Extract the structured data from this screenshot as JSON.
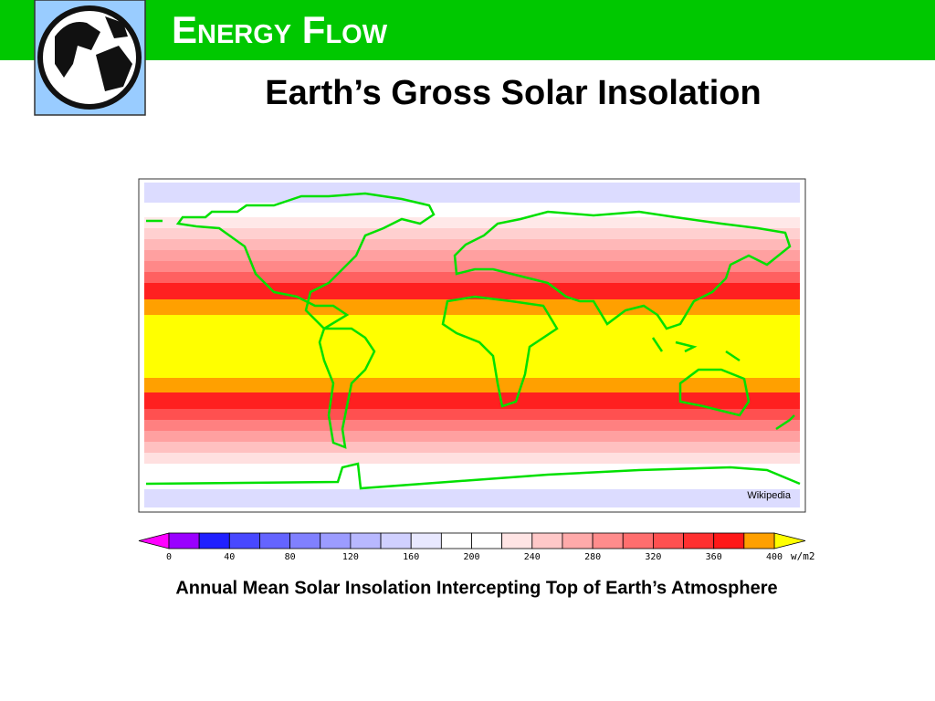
{
  "header": {
    "title": "Energy Flow"
  },
  "slide": {
    "subtitle": "Earth’s Gross Solar Insolation",
    "caption": "Annual Mean Solar Insolation Intercepting Top of Earth’s Atmosphere"
  },
  "map": {
    "credit": "Wikipedia"
  },
  "colorbar": {
    "range": [
      0,
      400
    ],
    "ticks": [
      0,
      40,
      80,
      120,
      160,
      200,
      240,
      280,
      320,
      360,
      400
    ],
    "unit": "w/m2",
    "under_color": "#ff00ff",
    "over_color": "#ffff00",
    "colors": [
      "#9a00ff",
      "#2020ff",
      "#4848ff",
      "#6464ff",
      "#8080ff",
      "#9c9cff",
      "#b8b8ff",
      "#d0d0ff",
      "#e8e8ff",
      "#ffffff",
      "#ffffff",
      "#ffe4e4",
      "#ffc8c8",
      "#ffaaaa",
      "#ff8c8c",
      "#ff6e6e",
      "#ff5050",
      "#ff3030",
      "#ff1818",
      "#ffa000"
    ]
  }
}
